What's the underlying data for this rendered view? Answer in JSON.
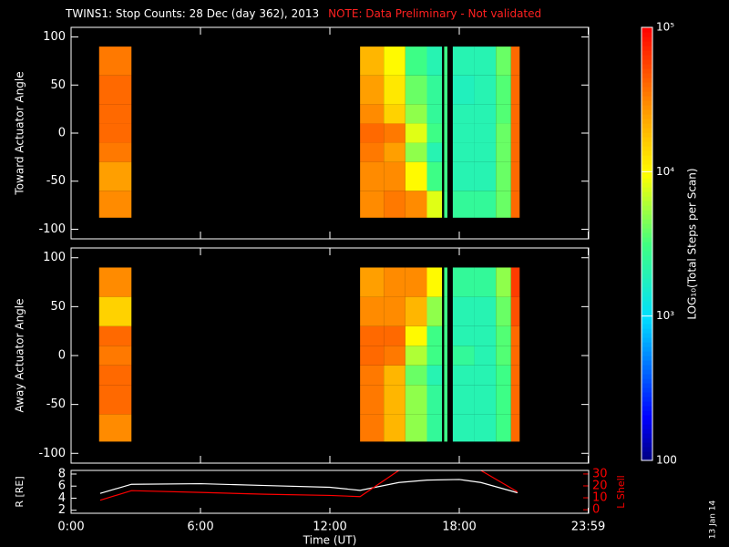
{
  "title": "TWINS1: Stop Counts: 28 Dec (day 362), 2013",
  "note": "NOTE: Data Preliminary - Not validated",
  "stamp": "13 Jan 14",
  "colorbar": {
    "label": "LOG₁₀(Total Steps per Scan)",
    "scale": "log",
    "zlim": [
      100,
      100000
    ],
    "ticks": [
      100,
      {
        "value": 1000,
        "label": "10³"
      },
      {
        "value": 10000,
        "label": "10⁴"
      },
      {
        "value": 100000,
        "label": "10⁵"
      }
    ]
  },
  "chart_data": [
    {
      "type": "heatmap",
      "ylabel": "Toward Actuator Angle",
      "xlim": [
        0,
        24
      ],
      "ylim": [
        -110,
        110
      ],
      "yticks": [
        -100,
        -50,
        0,
        50,
        100
      ],
      "x": [
        1.3,
        2.8,
        13.4,
        14.5,
        15.5,
        16.5,
        17.2,
        17.3,
        17.45,
        17.7,
        18.7,
        19.7,
        20.4,
        20.8
      ],
      "y": [
        -88,
        -60,
        -30,
        -10,
        10,
        30,
        60,
        90
      ],
      "z": [
        [
          30000,
          null,
          30000,
          35000,
          30000,
          8000,
          null,
          3000,
          null,
          2500,
          2500,
          4000,
          40000
        ],
        [
          25000,
          null,
          30000,
          30000,
          10000,
          3000,
          null,
          3000,
          null,
          2000,
          2000,
          4000,
          40000
        ],
        [
          35000,
          null,
          35000,
          25000,
          5000,
          2000,
          null,
          3000,
          null,
          2000,
          2000,
          4000,
          40000
        ],
        [
          40000,
          null,
          40000,
          35000,
          8000,
          3000,
          null,
          3000,
          null,
          2000,
          2000,
          4000,
          40000
        ],
        [
          40000,
          null,
          30000,
          15000,
          5000,
          2500,
          null,
          3000,
          null,
          2000,
          2000,
          3500,
          40000
        ],
        [
          40000,
          null,
          25000,
          12000,
          4000,
          2500,
          null,
          3000,
          null,
          1800,
          2000,
          3500,
          40000
        ],
        [
          35000,
          null,
          20000,
          10000,
          3000,
          2000,
          null,
          3000,
          null,
          2000,
          2000,
          4000,
          40000
        ]
      ]
    },
    {
      "type": "heatmap",
      "ylabel": "Away Actuator Angle",
      "xlim": [
        0,
        24
      ],
      "ylim": [
        -110,
        110
      ],
      "yticks": [
        -100,
        -50,
        0,
        50,
        100
      ],
      "x": [
        1.3,
        2.8,
        13.4,
        14.5,
        15.5,
        16.5,
        17.2,
        17.3,
        17.45,
        17.7,
        18.7,
        19.7,
        20.4,
        20.8
      ],
      "y": [
        -88,
        -60,
        -30,
        -10,
        10,
        30,
        60,
        90
      ],
      "z": [
        [
          30000,
          null,
          35000,
          20000,
          5000,
          2500,
          null,
          3000,
          null,
          2000,
          2000,
          3000,
          40000
        ],
        [
          40000,
          null,
          35000,
          20000,
          5000,
          2500,
          null,
          3000,
          null,
          2000,
          2000,
          3000,
          40000
        ],
        [
          40000,
          null,
          35000,
          20000,
          4000,
          2000,
          null,
          3000,
          null,
          2000,
          2000,
          3000,
          40000
        ],
        [
          35000,
          null,
          40000,
          35000,
          6000,
          3000,
          null,
          3000,
          null,
          2500,
          2000,
          3500,
          40000
        ],
        [
          40000,
          null,
          40000,
          40000,
          10000,
          3000,
          null,
          3000,
          null,
          2000,
          2000,
          3500,
          40000
        ],
        [
          15000,
          null,
          30000,
          30000,
          20000,
          5000,
          null,
          3000,
          null,
          2000,
          2000,
          4000,
          50000
        ],
        [
          30000,
          null,
          25000,
          30000,
          30000,
          10000,
          null,
          3000,
          null,
          2500,
          2500,
          5000,
          60000
        ]
      ]
    },
    {
      "type": "line",
      "xlabel": "Time (UT)",
      "ylabel": "R [RE]",
      "y2label": "L Shell",
      "y2color": "#ff0000",
      "xlim": [
        0,
        24
      ],
      "xticks": [
        {
          "value": 0,
          "label": "0:00"
        },
        {
          "value": 6,
          "label": "6:00"
        },
        {
          "value": 12,
          "label": "12:00"
        },
        {
          "value": 18,
          "label": "18:00"
        },
        {
          "value": 23.98,
          "label": "23:59"
        }
      ],
      "ylim": [
        1.5,
        8.6
      ],
      "yticks": [
        2,
        4,
        6,
        8
      ],
      "y2lim": [
        -3,
        33
      ],
      "y2ticks": [
        0,
        10,
        20,
        30
      ],
      "x": [
        1.35,
        2.8,
        6,
        9,
        12,
        13.4,
        15.2,
        16.5,
        18,
        19,
        20.7
      ],
      "series": [
        {
          "name": "R",
          "color": "#ffffff",
          "values": [
            4.8,
            6.3,
            6.4,
            6.1,
            5.8,
            5.3,
            6.6,
            7.0,
            7.1,
            6.6,
            4.9
          ]
        },
        {
          "name": "L",
          "color": "#ff0000",
          "axis": "y2",
          "values": [
            8,
            16,
            14.5,
            13,
            12,
            11,
            33,
            null,
            null,
            33,
            15
          ]
        }
      ]
    }
  ]
}
